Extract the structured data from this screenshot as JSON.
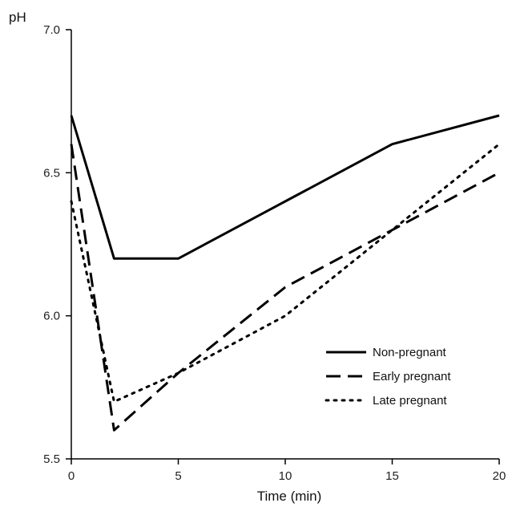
{
  "chart_data": {
    "type": "line",
    "title": "",
    "xlabel": "Time (min)",
    "ylabel": "pH",
    "xlim": [
      0,
      20
    ],
    "ylim": [
      5.5,
      7.0
    ],
    "xticks": [
      0,
      5,
      10,
      15,
      20
    ],
    "yticks": [
      5.5,
      6.0,
      6.5,
      7.0
    ],
    "ytick_labels": [
      "5.5",
      "6.0",
      "6.5",
      "7.0"
    ],
    "xtick_labels": [
      "0",
      "5",
      "10",
      "15",
      "20"
    ],
    "grid": false,
    "legend_position": "bottom-right",
    "series": [
      {
        "name": "Non-pregnant",
        "style": "solid",
        "color": "#000000",
        "x": [
          0,
          2,
          5,
          10,
          15,
          20
        ],
        "y": [
          6.7,
          6.2,
          6.2,
          6.4,
          6.6,
          6.7
        ]
      },
      {
        "name": "Early pregnant",
        "style": "dashed",
        "color": "#000000",
        "x": [
          0,
          2,
          5,
          10,
          15,
          20
        ],
        "y": [
          6.6,
          5.6,
          5.8,
          6.1,
          6.3,
          6.5
        ]
      },
      {
        "name": "Late pregnant",
        "style": "dotted",
        "color": "#000000",
        "x": [
          0,
          2,
          5,
          10,
          15,
          20
        ],
        "y": [
          6.4,
          5.7,
          5.8,
          6.0,
          6.3,
          6.6
        ]
      }
    ]
  }
}
